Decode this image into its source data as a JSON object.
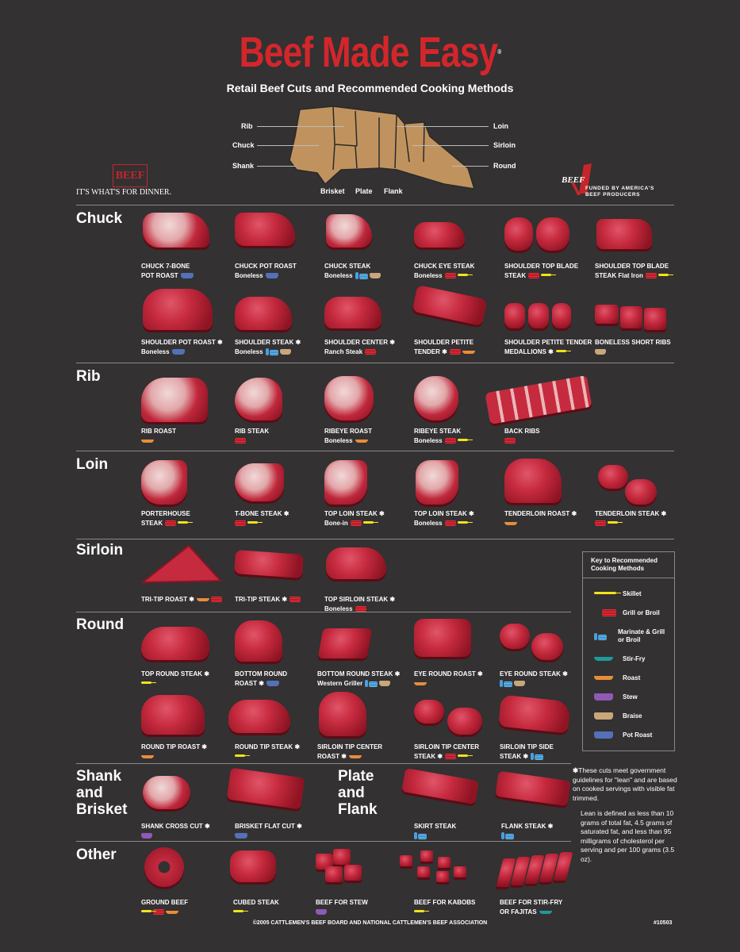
{
  "header": {
    "title": "Beef Made Easy",
    "registered": "®",
    "subtitle": "Retail Beef Cuts and Recommended Cooking Methods"
  },
  "diagram": {
    "labels": [
      "Rib",
      "Chuck",
      "Shank",
      "Brisket",
      "Plate",
      "Flank",
      "Loin",
      "Sirloin",
      "Round"
    ]
  },
  "logos": {
    "beef_logo": "BEEF",
    "beef_tagline": "IT'S WHAT'S FOR DINNER.",
    "checkoff_logo": "BEEF",
    "checkoff_line1": "FUNDED BY AMERICA'S",
    "checkoff_line2": "BEEF PRODUCERS"
  },
  "sections": {
    "chuck": "Chuck",
    "rib": "Rib",
    "loin": "Loin",
    "sirloin": "Sirloin",
    "round": "Round",
    "shank": "Shank",
    "shank2": "and",
    "shank3": "Brisket",
    "plate": "Plate",
    "plate2": "and",
    "plate3": "Flank",
    "other": "Other"
  },
  "cuts": {
    "chuck_7bone": {
      "l1": "CHUCK 7-BONE",
      "l2": "POT ROAST"
    },
    "chuck_pot": {
      "l1": "CHUCK POT ROAST",
      "l2": "Boneless"
    },
    "chuck_steak": {
      "l1": "CHUCK STEAK",
      "l2": "Boneless"
    },
    "chuck_eye": {
      "l1": "CHUCK EYE STEAK",
      "l2": "Boneless"
    },
    "shoulder_top": {
      "l1": "SHOULDER TOP BLADE",
      "l2": "STEAK"
    },
    "shoulder_top2": {
      "l1": "SHOULDER TOP BLADE",
      "l2": "STEAK  Flat Iron"
    },
    "shoulder_pot": {
      "l1": "SHOULDER POT ROAST ✱",
      "l2": "Boneless"
    },
    "shoulder_steak": {
      "l1": "SHOULDER STEAK ✱",
      "l2": "Boneless"
    },
    "shoulder_center": {
      "l1": "SHOULDER CENTER ✱",
      "l2": "Ranch Steak"
    },
    "shoulder_petite": {
      "l1": "SHOULDER PETITE",
      "l2": "TENDER ✱"
    },
    "shoulder_medallions": {
      "l1": "SHOULDER PETITE TENDER",
      "l2": "MEDALLIONS ✱"
    },
    "boneless_short": {
      "l1": "BONELESS SHORT RIBS",
      "l2": ""
    },
    "rib_roast": {
      "l1": "RIB ROAST",
      "l2": ""
    },
    "rib_steak": {
      "l1": "RIB STEAK",
      "l2": ""
    },
    "ribeye_roast": {
      "l1": "RIBEYE ROAST",
      "l2": "Boneless"
    },
    "ribeye_steak": {
      "l1": "RIBEYE STEAK",
      "l2": "Boneless"
    },
    "back_ribs": {
      "l1": "BACK RIBS",
      "l2": ""
    },
    "porterhouse": {
      "l1": "PORTERHOUSE",
      "l2": "STEAK"
    },
    "tbone": {
      "l1": "T-BONE STEAK ✱",
      "l2": ""
    },
    "top_loin_bone": {
      "l1": "TOP LOIN STEAK ✱",
      "l2": "Bone-in"
    },
    "top_loin_boneless": {
      "l1": "TOP LOIN STEAK ✱",
      "l2": "Boneless"
    },
    "tenderloin_roast": {
      "l1": "TENDERLOIN ROAST ✱",
      "l2": ""
    },
    "tenderloin_steak": {
      "l1": "TENDERLOIN STEAK ✱",
      "l2": ""
    },
    "tritip_roast": {
      "l1": "TRI-TIP ROAST ✱",
      "l2": ""
    },
    "tritip_steak": {
      "l1": "TRI-TIP STEAK ✱",
      "l2": ""
    },
    "top_sirloin": {
      "l1": "TOP SIRLOIN STEAK ✱",
      "l2": "Boneless"
    },
    "top_round": {
      "l1": "TOP ROUND STEAK ✱",
      "l2": ""
    },
    "bottom_round_roast": {
      "l1": "BOTTOM ROUND",
      "l2": "ROAST ✱"
    },
    "bottom_round_steak": {
      "l1": "BOTTOM ROUND STEAK ✱",
      "l2": "Western Griller"
    },
    "eye_round_roast": {
      "l1": "EYE ROUND ROAST ✱",
      "l2": ""
    },
    "eye_round_steak": {
      "l1": "EYE ROUND STEAK ✱",
      "l2": ""
    },
    "round_tip_roast": {
      "l1": "ROUND TIP ROAST ✱",
      "l2": ""
    },
    "round_tip_steak": {
      "l1": "ROUND TIP STEAK ✱",
      "l2": ""
    },
    "sirloin_tip_center_roast": {
      "l1": "SIRLOIN TIP CENTER",
      "l2": "ROAST ✱"
    },
    "sirloin_tip_center_steak": {
      "l1": "SIRLOIN TIP CENTER",
      "l2": "STEAK ✱"
    },
    "sirloin_tip_side": {
      "l1": "SIRLOIN TIP SIDE",
      "l2": "STEAK ✱"
    },
    "shank_cross": {
      "l1": "SHANK CROSS CUT ✱",
      "l2": ""
    },
    "brisket_flat": {
      "l1": "BRISKET FLAT CUT ✱",
      "l2": ""
    },
    "skirt": {
      "l1": "SKIRT STEAK",
      "l2": ""
    },
    "flank": {
      "l1": "FLANK STEAK ✱",
      "l2": ""
    },
    "ground": {
      "l1": "GROUND BEEF",
      "l2": ""
    },
    "cubed": {
      "l1": "CUBED STEAK",
      "l2": ""
    },
    "stew": {
      "l1": "BEEF FOR STEW",
      "l2": ""
    },
    "kabobs": {
      "l1": "BEEF FOR KABOBS",
      "l2": ""
    },
    "stirfry": {
      "l1": "BEEF FOR STIR-FRY",
      "l2": "OR FAJITAS"
    }
  },
  "key": {
    "title": "Key to Recommended Cooking Methods",
    "skillet": "Skillet",
    "grill": "Grill or Broil",
    "marinate": "Marinate & Grill or Broil",
    "stirfry": "Stir-Fry",
    "roast": "Roast",
    "stew": "Stew",
    "braise": "Braise",
    "potroast": "Pot Roast"
  },
  "footnote": {
    "star": "✱",
    "p1": "These cuts meet government guidelines for \"lean\" and are based on cooked servings with visible fat trimmed.",
    "p2": "Lean is defined as less than 10 grams of total fat, 4.5 grams of saturated fat, and less than 95 milligrams of cholesterol per serving and per 100 grams (3.5 oz)."
  },
  "footer": {
    "copyright": "©2005 CATTLEMEN'S BEEF BOARD AND NATIONAL CATTLEMEN'S BEEF ASSOCIATION",
    "code": "#10503"
  },
  "colors": {
    "background": "#333132",
    "title_red": "#d3262b",
    "diagram_tan": "#c0935e"
  }
}
